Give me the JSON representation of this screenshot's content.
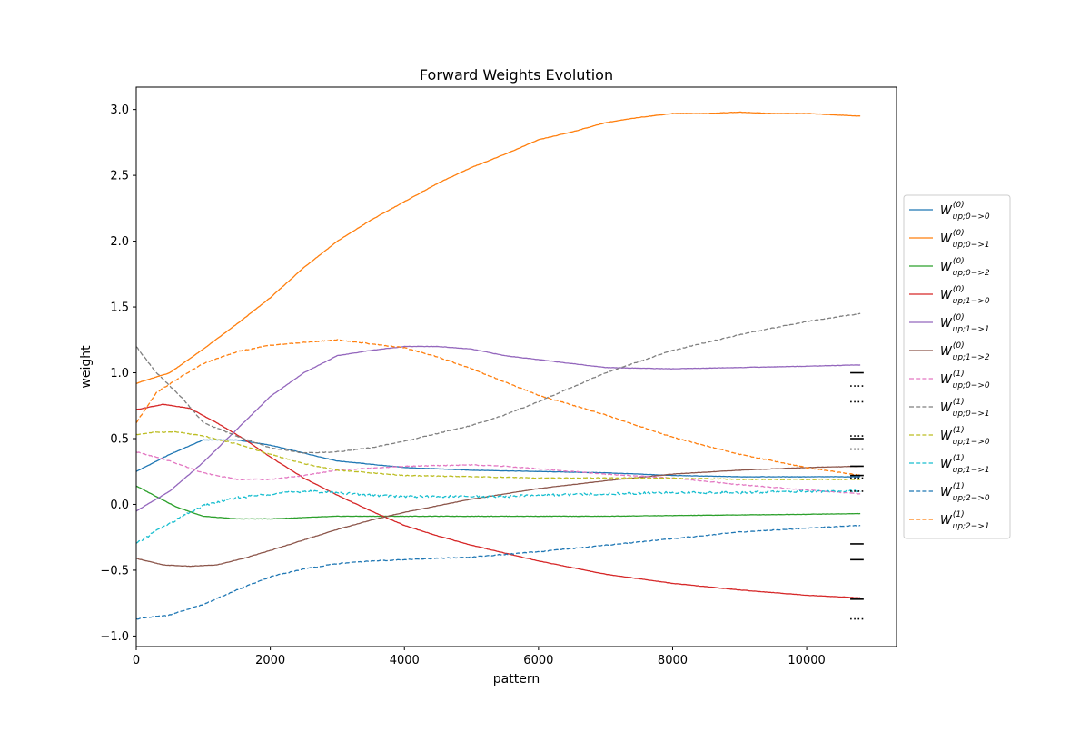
{
  "chart_data": {
    "type": "line",
    "title": "Forward Weights Evolution",
    "xlabel": "pattern",
    "ylabel": "weight",
    "xlim": [
      0,
      11340
    ],
    "ylim": [
      -1.08,
      3.17
    ],
    "xticks": [
      0,
      2000,
      4000,
      6000,
      8000,
      10000
    ],
    "xtick_labels": [
      "0",
      "2000",
      "4000",
      "6000",
      "8000",
      "10000"
    ],
    "yticks": [
      -1.0,
      -0.5,
      0.0,
      0.5,
      1.0,
      1.5,
      2.0,
      2.5,
      3.0
    ],
    "ytick_labels": [
      "−1.0",
      "−0.5",
      "0.0",
      "0.5",
      "1.0",
      "1.5",
      "2.0",
      "2.5",
      "3.0"
    ],
    "grid": false,
    "legend_position": "center-right-outside",
    "series": [
      {
        "name": "W_up;0->0 (0)",
        "base": "W",
        "sup": "(0)",
        "sub": "up;0−>0",
        "color": "#1f77b4",
        "dash": "solid",
        "x": [
          0,
          500,
          1000,
          1500,
          2000,
          3000,
          4000,
          5000,
          6000,
          7000,
          8000,
          9000,
          10000,
          10800
        ],
        "y": [
          0.25,
          0.38,
          0.49,
          0.49,
          0.45,
          0.33,
          0.28,
          0.26,
          0.25,
          0.24,
          0.22,
          0.21,
          0.21,
          0.21
        ]
      },
      {
        "name": "W_up;0->1 (0)",
        "base": "W",
        "sup": "(0)",
        "sub": "up;0−>1",
        "color": "#ff7f0e",
        "dash": "solid",
        "x": [
          0,
          500,
          1000,
          1500,
          2000,
          2500,
          3000,
          3500,
          4000,
          4500,
          5000,
          5500,
          6000,
          6500,
          7000,
          7500,
          8000,
          8500,
          9000,
          9500,
          10000,
          10800
        ],
        "y": [
          0.92,
          1.0,
          1.18,
          1.37,
          1.57,
          1.8,
          2.0,
          2.16,
          2.3,
          2.44,
          2.56,
          2.66,
          2.77,
          2.83,
          2.9,
          2.94,
          2.97,
          2.97,
          2.98,
          2.97,
          2.97,
          2.95
        ]
      },
      {
        "name": "W_up;0->2 (0)",
        "base": "W",
        "sup": "(0)",
        "sub": "up;0−>2",
        "color": "#2ca02c",
        "dash": "solid",
        "x": [
          0,
          300,
          600,
          1000,
          1500,
          2000,
          3000,
          4000,
          5000,
          6000,
          7000,
          8000,
          9000,
          10000,
          10800
        ],
        "y": [
          0.14,
          0.06,
          -0.02,
          -0.09,
          -0.11,
          -0.11,
          -0.09,
          -0.09,
          -0.09,
          -0.09,
          -0.09,
          -0.085,
          -0.08,
          -0.075,
          -0.07
        ]
      },
      {
        "name": "W_up;1->0 (0)",
        "base": "W",
        "sup": "(0)",
        "sub": "up;1−>0",
        "color": "#d62728",
        "dash": "solid",
        "x": [
          0,
          400,
          800,
          1200,
          1600,
          2000,
          2500,
          3000,
          3500,
          4000,
          4500,
          5000,
          5500,
          6000,
          6500,
          7000,
          8000,
          9000,
          10000,
          10800
        ],
        "y": [
          0.72,
          0.76,
          0.73,
          0.62,
          0.5,
          0.36,
          0.2,
          0.07,
          -0.05,
          -0.16,
          -0.24,
          -0.31,
          -0.37,
          -0.43,
          -0.48,
          -0.53,
          -0.6,
          -0.65,
          -0.69,
          -0.71
        ]
      },
      {
        "name": "W_up;1->1 (0)",
        "base": "W",
        "sup": "(0)",
        "sub": "up;1−>1",
        "color": "#9467bd",
        "dash": "solid",
        "x": [
          0,
          500,
          1000,
          1500,
          2000,
          2500,
          3000,
          3500,
          4000,
          4500,
          5000,
          5500,
          6000,
          7000,
          8000,
          9000,
          10000,
          10800
        ],
        "y": [
          -0.05,
          0.1,
          0.32,
          0.57,
          0.82,
          1.0,
          1.13,
          1.17,
          1.2,
          1.2,
          1.18,
          1.13,
          1.1,
          1.04,
          1.03,
          1.04,
          1.05,
          1.06
        ]
      },
      {
        "name": "W_up;1->2 (0)",
        "base": "W",
        "sup": "(0)",
        "sub": "up;1−>2",
        "color": "#8c564b",
        "dash": "solid",
        "x": [
          0,
          400,
          800,
          1200,
          1600,
          2000,
          2500,
          3000,
          3500,
          4000,
          4500,
          5000,
          6000,
          7000,
          8000,
          9000,
          10000,
          10800
        ],
        "y": [
          -0.41,
          -0.46,
          -0.47,
          -0.46,
          -0.41,
          -0.35,
          -0.27,
          -0.19,
          -0.12,
          -0.06,
          -0.01,
          0.04,
          0.12,
          0.18,
          0.23,
          0.26,
          0.28,
          0.29
        ]
      },
      {
        "name": "W_up;0->0 (1)",
        "base": "W",
        "sup": "(1)",
        "sub": "up;0−>0",
        "color": "#e377c2",
        "dash": "dashed",
        "x": [
          0,
          500,
          1000,
          1500,
          2000,
          2500,
          3000,
          4000,
          5000,
          5500,
          6000,
          7000,
          8000,
          9000,
          10000,
          10800
        ],
        "y": [
          0.4,
          0.33,
          0.24,
          0.19,
          0.19,
          0.22,
          0.26,
          0.29,
          0.3,
          0.29,
          0.27,
          0.23,
          0.2,
          0.15,
          0.11,
          0.08
        ]
      },
      {
        "name": "W_up;0->1 (1)",
        "base": "W",
        "sup": "(1)",
        "sub": "up;0−>1",
        "color": "#7f7f7f",
        "dash": "dashed",
        "x": [
          0,
          300,
          700,
          1000,
          1500,
          2000,
          2500,
          3000,
          3500,
          4000,
          5000,
          5500,
          6000,
          7000,
          8000,
          9000,
          10000,
          10800
        ],
        "y": [
          1.2,
          1.0,
          0.8,
          0.62,
          0.52,
          0.43,
          0.39,
          0.4,
          0.43,
          0.48,
          0.6,
          0.68,
          0.78,
          1.0,
          1.17,
          1.29,
          1.39,
          1.45
        ]
      },
      {
        "name": "W_up;1->0 (1)",
        "base": "W",
        "sup": "(1)",
        "sub": "up;1−>0",
        "color": "#bcbd22",
        "dash": "dashed",
        "x": [
          0,
          300,
          600,
          1000,
          1500,
          2000,
          2500,
          3000,
          4000,
          5000,
          6000,
          7000,
          8000,
          9000,
          10000,
          10800
        ],
        "y": [
          0.53,
          0.55,
          0.55,
          0.52,
          0.46,
          0.38,
          0.31,
          0.26,
          0.22,
          0.21,
          0.2,
          0.2,
          0.2,
          0.19,
          0.19,
          0.19
        ]
      },
      {
        "name": "W_up;1->1 (1)",
        "base": "W",
        "sup": "(1)",
        "sub": "up;1−>1",
        "color": "#17becf",
        "dash": "dashed",
        "x": [
          0,
          300,
          700,
          1000,
          1500,
          2000,
          2500,
          3000,
          3500,
          4000,
          4500,
          5000,
          5500,
          6000,
          7000,
          8000,
          9000,
          10000,
          10800
        ],
        "y": [
          -0.3,
          -0.2,
          -0.09,
          -0.01,
          0.05,
          0.08,
          0.1,
          0.09,
          0.07,
          0.06,
          0.06,
          0.06,
          0.06,
          0.07,
          0.08,
          0.09,
          0.09,
          0.1,
          0.1
        ]
      },
      {
        "name": "W_up;2->0 (1)",
        "base": "W",
        "sup": "(1)",
        "sub": "up;2−>0",
        "color": "#1f77b4",
        "dash": "dashed",
        "x": [
          0,
          500,
          1000,
          1500,
          2000,
          2500,
          3000,
          3500,
          4000,
          5000,
          6000,
          7000,
          8000,
          9000,
          10000,
          10800
        ],
        "y": [
          -0.87,
          -0.84,
          -0.76,
          -0.65,
          -0.55,
          -0.49,
          -0.45,
          -0.43,
          -0.42,
          -0.4,
          -0.36,
          -0.31,
          -0.26,
          -0.21,
          -0.18,
          -0.16
        ]
      },
      {
        "name": "W_up;2->1 (1)",
        "base": "W",
        "sup": "(1)",
        "sub": "up;2−>1",
        "color": "#ff7f0e",
        "dash": "dashed",
        "x": [
          0,
          300,
          700,
          1000,
          1500,
          2000,
          2500,
          3000,
          3500,
          4000,
          4500,
          5000,
          5500,
          6000,
          7000,
          8000,
          9000,
          10000,
          10800
        ],
        "y": [
          0.62,
          0.85,
          0.98,
          1.07,
          1.16,
          1.21,
          1.23,
          1.25,
          1.22,
          1.19,
          1.12,
          1.03,
          0.93,
          0.83,
          0.68,
          0.51,
          0.38,
          0.28,
          0.22
        ]
      }
    ],
    "target_markers": [
      {
        "style": "solid",
        "value": 1.0
      },
      {
        "style": "dotted",
        "value": 0.9
      },
      {
        "style": "dotted",
        "value": 0.78
      },
      {
        "style": "dotted",
        "value": 0.52
      },
      {
        "style": "solid",
        "value": 0.5
      },
      {
        "style": "dotted",
        "value": 0.42
      },
      {
        "style": "solid",
        "value": 0.29
      },
      {
        "style": "solid",
        "value": 0.22
      },
      {
        "style": "dotted",
        "value": 0.2
      },
      {
        "style": "dotted",
        "value": 0.1
      },
      {
        "style": "solid",
        "value": -0.3
      },
      {
        "style": "solid",
        "value": -0.42
      },
      {
        "style": "solid",
        "value": -0.72
      },
      {
        "style": "dotted",
        "value": -0.87
      }
    ],
    "target_marker_x": [
      10650,
      10850
    ]
  }
}
